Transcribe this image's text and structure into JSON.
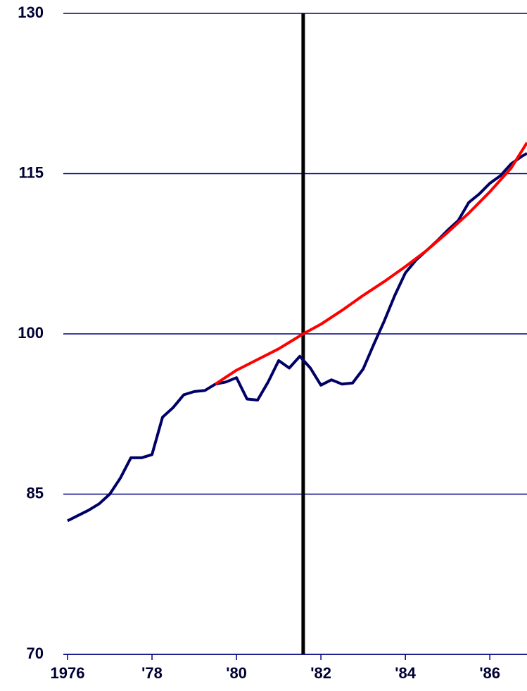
{
  "chart_data": {
    "type": "line",
    "xlim": [
      1975.9,
      1986.88
    ],
    "ylim": [
      70,
      130
    ],
    "xticks": [
      1976,
      {
        "value": 1978,
        "label": "'78"
      },
      {
        "value": 1980,
        "label": "'80"
      },
      {
        "value": 1982,
        "label": "'82"
      },
      {
        "value": 1984,
        "label": "'84"
      },
      {
        "value": 1986,
        "label": "'86"
      }
    ],
    "yticks": [
      70,
      85,
      100,
      115,
      130
    ],
    "grid": true,
    "vline": {
      "x": 1981.58,
      "color": "#000000"
    },
    "series": [
      {
        "color": "#000066",
        "x": [
          1976.0,
          1976.25,
          1976.5,
          1976.75,
          1977.0,
          1977.25,
          1977.5,
          1977.75,
          1978.0,
          1978.25,
          1978.5,
          1978.75,
          1979.0,
          1979.25,
          1979.5,
          1979.75,
          1980.0,
          1980.25,
          1980.5,
          1980.75,
          1981.0,
          1981.25,
          1981.5,
          1981.75,
          1982.0,
          1982.25,
          1982.5,
          1982.75,
          1983.0,
          1983.25,
          1983.5,
          1983.75,
          1984.0,
          1984.25,
          1984.5,
          1984.75,
          1985.0,
          1985.25,
          1985.5,
          1985.75,
          1986.0,
          1986.25,
          1986.5,
          1986.75,
          1986.88
        ],
        "values": [
          82.5,
          83.0,
          83.5,
          84.1,
          85.0,
          86.5,
          88.4,
          88.4,
          88.7,
          92.2,
          93.1,
          94.3,
          94.6,
          94.7,
          95.3,
          95.5,
          95.9,
          93.9,
          93.8,
          95.5,
          97.5,
          96.8,
          97.9,
          96.8,
          95.2,
          95.7,
          95.3,
          95.4,
          96.7,
          99.0,
          101.2,
          103.6,
          105.7,
          106.9,
          107.8,
          108.7,
          109.7,
          110.6,
          112.3,
          113.1,
          114.1,
          114.8,
          115.9,
          116.6,
          116.9
        ]
      },
      {
        "color": "#ff0000",
        "x": [
          1979.5,
          1980.0,
          1980.5,
          1981.0,
          1981.58,
          1982.0,
          1982.5,
          1983.0,
          1983.5,
          1984.0,
          1984.5,
          1985.0,
          1985.5,
          1986.0,
          1986.5,
          1986.88
        ],
        "values": [
          95.3,
          96.6,
          97.6,
          98.6,
          100,
          100.9,
          102.2,
          103.6,
          104.9,
          106.3,
          107.8,
          109.5,
          111.3,
          113.3,
          115.5,
          117.9
        ]
      }
    ]
  }
}
